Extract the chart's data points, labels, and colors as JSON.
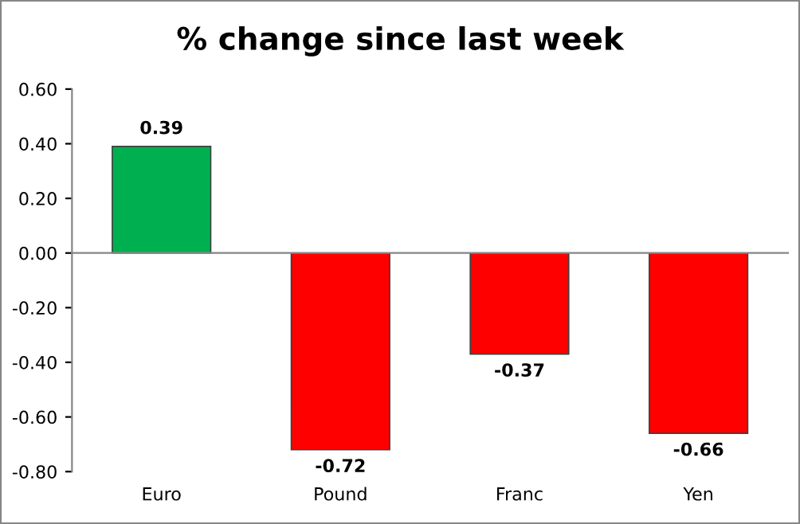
{
  "chart_data": {
    "type": "bar",
    "title": "% change since last week",
    "categories": [
      "Euro",
      "Pound",
      "Franc",
      "Yen"
    ],
    "values": [
      0.39,
      -0.72,
      -0.37,
      -0.66
    ],
    "colors": [
      "#00b050",
      "#ff0000",
      "#ff0000",
      "#ff0000"
    ],
    "ylim": [
      -0.8,
      0.6
    ],
    "yticks": [
      {
        "value": -0.8,
        "label": "-0.80"
      },
      {
        "value": -0.6,
        "label": "-0.60"
      },
      {
        "value": -0.4,
        "label": "-0.40"
      },
      {
        "value": -0.2,
        "label": "-0.20"
      },
      {
        "value": 0,
        "label": "0.00"
      },
      {
        "value": 0.2,
        "label": "0.20"
      },
      {
        "value": 0.4,
        "label": "0.40"
      },
      {
        "value": 0.6,
        "label": "0.60"
      }
    ],
    "data_labels": true,
    "legend": false
  }
}
